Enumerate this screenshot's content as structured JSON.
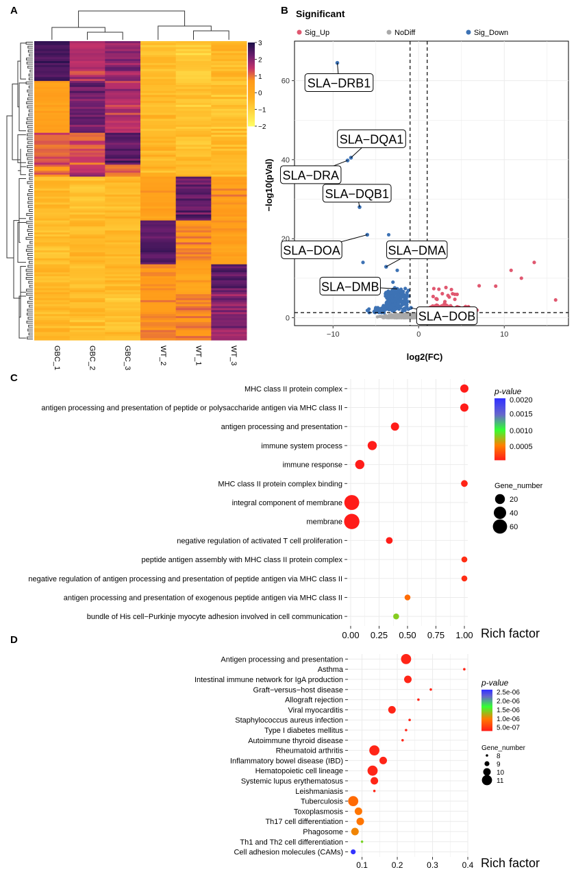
{
  "panels": [
    "A",
    "B",
    "C",
    "D"
  ],
  "chart_data": [
    {
      "panel": "A",
      "type": "heatmap",
      "columns": [
        "GBC_1",
        "GBC_2",
        "GBC_3",
        "WT_2",
        "WT_1",
        "WT_3"
      ],
      "scale_ticks": [
        3,
        2,
        1,
        0,
        -1,
        -2
      ],
      "scale_range": [
        -2,
        3
      ],
      "color_low": "#ffff66",
      "color_mid": "#ff9a1a",
      "color_high": "#1f0f4a"
    },
    {
      "panel": "B",
      "type": "scatter",
      "title": "Significant",
      "xlabel": "log2(FC)",
      "ylabel": "−log10(pVal)",
      "xlim": [
        -14.5,
        17.5
      ],
      "ylim": [
        -2,
        70
      ],
      "xticks": [
        -10,
        0,
        10
      ],
      "yticks": [
        0,
        20,
        40,
        60
      ],
      "vlines": [
        -1,
        1
      ],
      "hline": 1.3,
      "legend": [
        {
          "name": "Sig_Up",
          "color": "#e05870"
        },
        {
          "name": "NoDiff",
          "color": "#a9a9a9"
        },
        {
          "name": "Sig_Down",
          "color": "#3d72b4"
        }
      ],
      "labels": [
        {
          "gene": "SLA−DRB1",
          "x": -9.5,
          "y": 64.5,
          "lx": -9.3,
          "ly": 59.5
        },
        {
          "gene": "SLA−DQA1",
          "x": -7.9,
          "y": 40.5,
          "lx": -5.5,
          "ly": 45.3
        },
        {
          "gene": "SLA−DRA",
          "x": -8.3,
          "y": 39.8,
          "lx": -12.6,
          "ly": 36.2
        },
        {
          "gene": "SLA−DQB1",
          "x": -6.9,
          "y": 28.0,
          "lx": -7.2,
          "ly": 31.5
        },
        {
          "gene": "SLA−DOA",
          "x": -6.0,
          "y": 21.0,
          "lx": -12.5,
          "ly": 17.2
        },
        {
          "gene": "SLA−DMA",
          "x": -3.8,
          "y": 12.9,
          "lx": -0.2,
          "ly": 17.2
        },
        {
          "gene": "SLA−DMB",
          "x": -2.5,
          "y": 7.3,
          "lx": -8.0,
          "ly": 8.0
        },
        {
          "gene": "SLA−DOB",
          "x": -0.9,
          "y": 2.5,
          "lx": 3.3,
          "ly": 0.5
        }
      ]
    },
    {
      "panel": "C",
      "type": "scatter",
      "xlabel": "Rich factor",
      "xlim": [
        -0.03,
        1.03
      ],
      "xticks": [
        "0.00",
        "0.25",
        "0.50",
        "0.75",
        "1.00"
      ],
      "color_title": "p-value",
      "color_ticks": [
        "0.0020",
        "0.0015",
        "0.0010",
        "0.0005"
      ],
      "size_title": "Gene_number",
      "size_ticks": [
        "20",
        "40",
        "60"
      ],
      "terms": [
        "MHC class II protein complex",
        "antigen processing and presentation of peptide or polysaccharide antigen via MHC class II",
        "antigen processing and presentation",
        "immune system process",
        "immune response",
        "MHC class II protein complex binding",
        "integral component of membrane",
        "membrane",
        "negative regulation of activated T cell proliferation",
        "peptide antigen assembly with MHC class II protein complex",
        "negative regulation of antigen processing and presentation of peptide antigen via MHC class II",
        "antigen processing and presentation of exogenous peptide antigen via MHC class II",
        "bundle of His cell−Purkinje myocyte adhesion involved in cell communication"
      ],
      "rich_factor": [
        1.0,
        1.0,
        0.39,
        0.19,
        0.08,
        1.0,
        0.01,
        0.01,
        0.34,
        1.0,
        1.0,
        0.5,
        0.4
      ],
      "pvalue": [
        1e-05,
        1e-05,
        1e-05,
        1e-05,
        1e-05,
        5e-05,
        1e-05,
        1e-05,
        2e-05,
        0.0001,
        0.0001,
        0.0004,
        0.0008
      ],
      "gene_number": [
        10,
        10,
        10,
        15,
        15,
        4,
        70,
        75,
        4,
        2,
        2,
        2,
        2
      ]
    },
    {
      "panel": "D",
      "type": "scatter",
      "xlabel": "Rich factor",
      "xlim": [
        0.06,
        0.4
      ],
      "xticks": [
        "0.1",
        "0.2",
        "0.3",
        "0.4"
      ],
      "color_title": "p-value",
      "color_ticks": [
        "2.5e-06",
        "2.0e-06",
        "1.5e-06",
        "1.0e-06",
        "5.0e-07"
      ],
      "size_title": "Gene_number",
      "size_ticks": [
        "8",
        "9",
        "10",
        "11"
      ],
      "terms": [
        "Antigen processing and presentation",
        "Asthma",
        "Intestinal immune network for IgA production",
        "Graft−versus−host disease",
        "Allograft rejection",
        "Viral myocarditis",
        "Staphylococcus aureus infection",
        "Type I diabetes mellitus",
        "Autoimmune thyroid disease",
        "Rheumatoid arthritis",
        "Inflammatory bowel disease (IBD)",
        "Hematopoietic cell lineage",
        "Systemic lupus erythematosus",
        "Leishmaniasis",
        "Tuberculosis",
        "Toxoplasmosis",
        "Th17 cell differentiation",
        "Phagosome",
        "Th1 and Th2 cell differentiation",
        "Cell adhesion molecules (CAMs)"
      ],
      "rich_factor": [
        0.225,
        0.39,
        0.23,
        0.295,
        0.26,
        0.185,
        0.235,
        0.225,
        0.215,
        0.135,
        0.16,
        0.13,
        0.135,
        0.135,
        0.075,
        0.09,
        0.095,
        0.08,
        0.1,
        0.075
      ],
      "pvalue": [
        1e-07,
        1e-07,
        1e-07,
        1e-07,
        1e-07,
        1e-07,
        1e-07,
        1e-07,
        1e-07,
        1e-07,
        1e-07,
        1e-07,
        1e-07,
        1e-07,
        7e-07,
        8e-07,
        8e-07,
        9e-07,
        1.4e-06,
        2.8e-06
      ],
      "gene_number": [
        11,
        8,
        10,
        8,
        8,
        10,
        8,
        8,
        8,
        11,
        10,
        11,
        10,
        8,
        11,
        10,
        10,
        10,
        8,
        9
      ]
    }
  ]
}
